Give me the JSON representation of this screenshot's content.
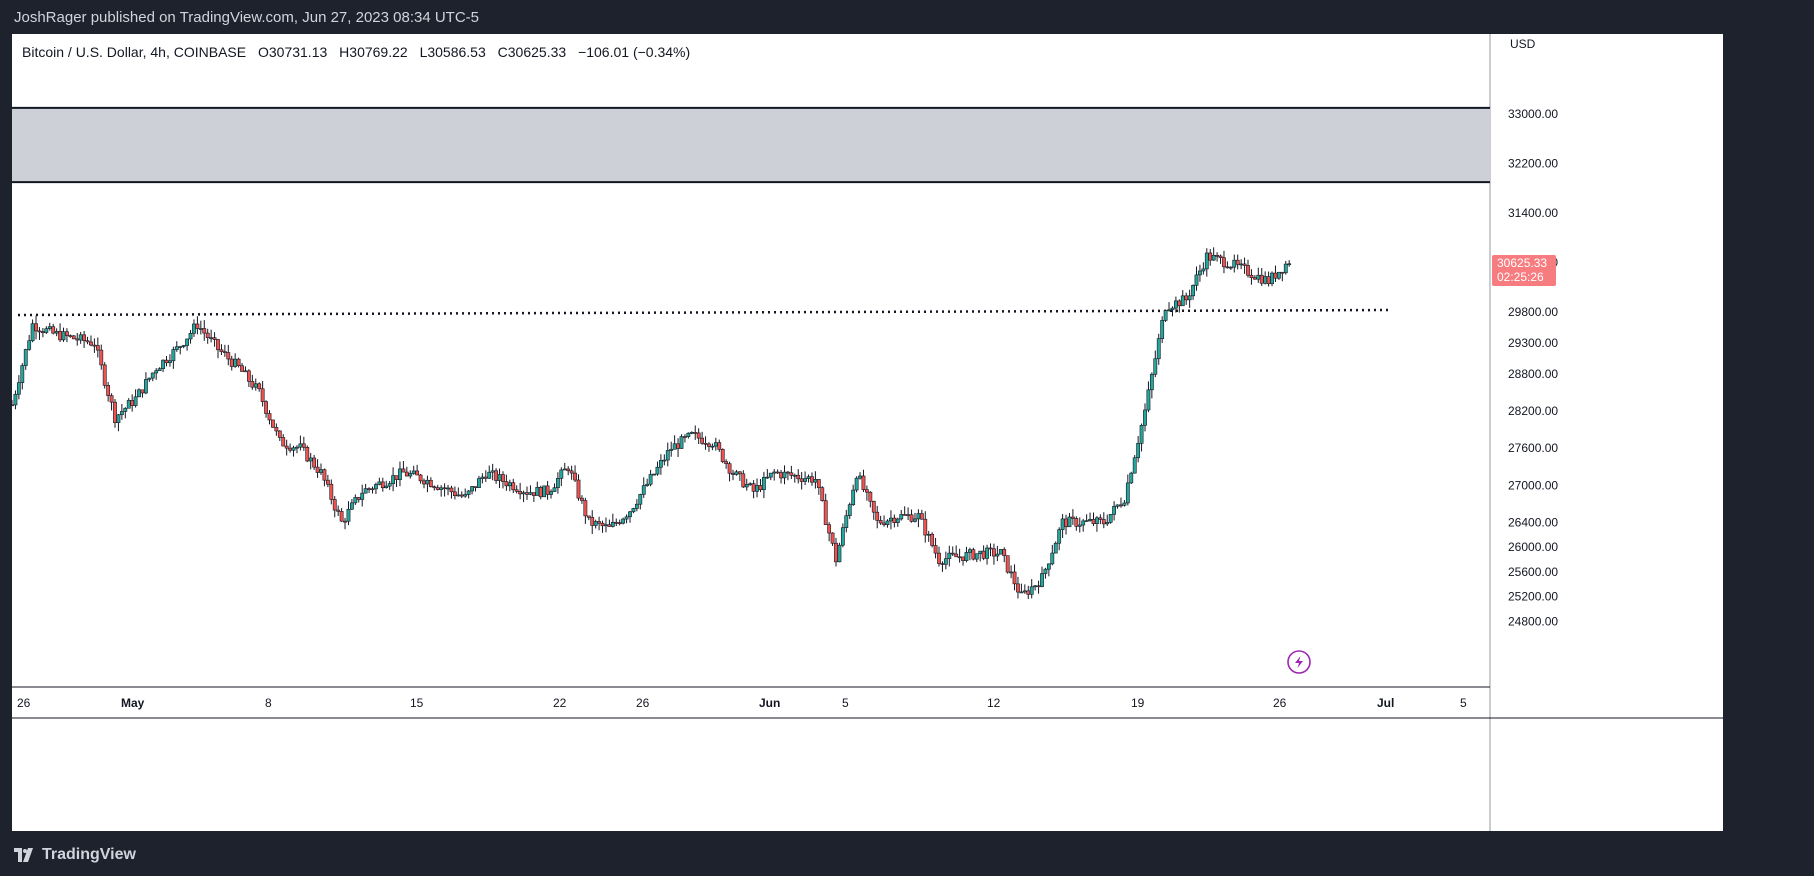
{
  "header": {
    "published": "JoshRager published on TradingView.com, Jun 27, 2023 08:34 UTC-5"
  },
  "legend": {
    "symbol": "Bitcoin / U.S. Dollar, 4h, COINBASE",
    "open": "O30731.13",
    "high": "H30769.22",
    "low": "L30586.53",
    "close": "C30625.33",
    "change": "−106.01 (−0.34%)"
  },
  "price_axis": {
    "currency": "USD",
    "last_price": "30625.33",
    "countdown": "02:25:26",
    "last_price_color": "#f77c80"
  },
  "footer": {
    "brand": "TradingView"
  },
  "icons": {
    "alert": "lightning-icon",
    "logo": "tradingview-logo-icon"
  },
  "colors": {
    "up": "#26a69a",
    "down": "#ef5350",
    "wick": "#131722",
    "zone": "#cdd0d6",
    "alert": "#9c27b0"
  },
  "chart_data": {
    "type": "candlestick",
    "timeframe": "4h",
    "y_ticks": [
      33000,
      32200,
      31400,
      30600,
      29800,
      29300,
      28800,
      28200,
      27600,
      27000,
      26400,
      26000,
      25600,
      25200,
      24800
    ],
    "x_ticks": [
      "26",
      "May",
      "8",
      "15",
      "22",
      "26",
      "Jun",
      "5",
      "12",
      "19",
      "26",
      "Jul",
      "5"
    ],
    "resistance_zone": {
      "from": 31900,
      "to": 33100
    },
    "horizontal_level": 29900,
    "anchors": [
      [
        "2023-04-26",
        28300
      ],
      [
        "2023-04-27",
        29600
      ],
      [
        "2023-04-28",
        29450
      ],
      [
        "2023-04-30",
        29300
      ],
      [
        "2023-05-01",
        28100
      ],
      [
        "2023-05-02",
        28400
      ],
      [
        "2023-05-03",
        28900
      ],
      [
        "2023-05-04",
        29200
      ],
      [
        "2023-05-05",
        29600
      ],
      [
        "2023-05-06",
        29200
      ],
      [
        "2023-05-07",
        28900
      ],
      [
        "2023-05-08",
        28500
      ],
      [
        "2023-05-09",
        27700
      ],
      [
        "2023-05-10",
        27600
      ],
      [
        "2023-05-11",
        27200
      ],
      [
        "2023-05-12",
        26400
      ],
      [
        "2023-05-13",
        26900
      ],
      [
        "2023-05-15",
        27200
      ],
      [
        "2023-05-16",
        27100
      ],
      [
        "2023-05-18",
        26800
      ],
      [
        "2023-05-19",
        27200
      ],
      [
        "2023-05-21",
        26900
      ],
      [
        "2023-05-22",
        26900
      ],
      [
        "2023-05-23",
        27300
      ],
      [
        "2023-05-24",
        26400
      ],
      [
        "2023-05-25",
        26300
      ],
      [
        "2023-05-26",
        26600
      ],
      [
        "2023-05-28",
        27600
      ],
      [
        "2023-05-29",
        27800
      ],
      [
        "2023-05-30",
        27700
      ],
      [
        "2023-05-31",
        27200
      ],
      [
        "2023-06-01",
        26900
      ],
      [
        "2023-06-02",
        27200
      ],
      [
        "2023-06-04",
        27100
      ],
      [
        "2023-06-05",
        25800
      ],
      [
        "2023-06-06",
        27200
      ],
      [
        "2023-06-07",
        26400
      ],
      [
        "2023-06-08",
        26500
      ],
      [
        "2023-06-09",
        26500
      ],
      [
        "2023-06-10",
        25800
      ],
      [
        "2023-06-12",
        25900
      ],
      [
        "2023-06-13",
        25900
      ],
      [
        "2023-06-14",
        25200
      ],
      [
        "2023-06-15",
        25500
      ],
      [
        "2023-06-16",
        26400
      ],
      [
        "2023-06-18",
        26400
      ],
      [
        "2023-06-19",
        26800
      ],
      [
        "2023-06-20",
        28200
      ],
      [
        "2023-06-21",
        29900
      ],
      [
        "2023-06-22",
        30000
      ],
      [
        "2023-06-23",
        30700
      ],
      [
        "2023-06-24",
        30600
      ],
      [
        "2023-06-25",
        30450
      ],
      [
        "2023-06-26",
        30300
      ],
      [
        "2023-06-27",
        30625.33
      ]
    ]
  }
}
